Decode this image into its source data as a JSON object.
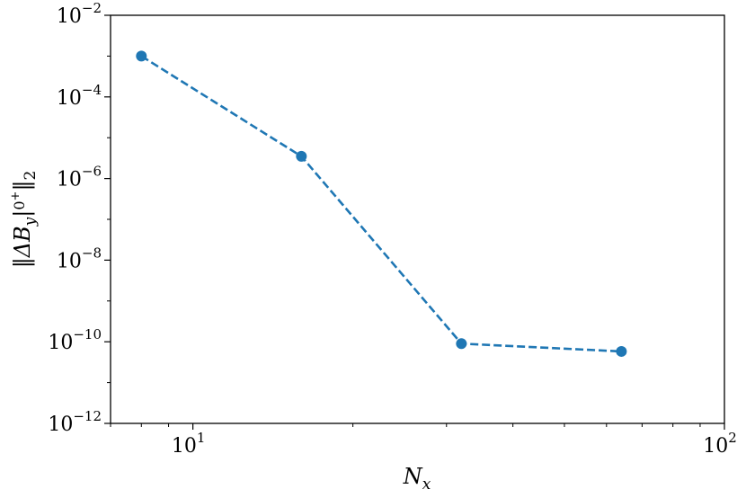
{
  "chart_data": {
    "type": "line",
    "xscale": "log",
    "yscale": "log",
    "xlim": [
      7.0,
      100
    ],
    "ylim": [
      1e-12,
      0.01
    ],
    "xlabel": "N_x",
    "ylabel": "||ΔB_y|0+||_2",
    "grid": false,
    "x_ticks": [
      {
        "value": 10,
        "base": "10",
        "exp": "1"
      },
      {
        "value": 100,
        "base": "10",
        "exp": "2"
      }
    ],
    "y_ticks": [
      {
        "value": 0.01,
        "base": "10",
        "exp": "−2"
      },
      {
        "value": 0.0001,
        "base": "10",
        "exp": "−4"
      },
      {
        "value": 1e-06,
        "base": "10",
        "exp": "−6"
      },
      {
        "value": 1e-08,
        "base": "10",
        "exp": "−8"
      },
      {
        "value": 1e-10,
        "base": "10",
        "exp": "−10"
      },
      {
        "value": 1e-12,
        "base": "10",
        "exp": "−12"
      }
    ],
    "series": [
      {
        "color": "#1f77b4",
        "linestyle": "dashed",
        "marker": "circle",
        "x": [
          8,
          16,
          32,
          64
        ],
        "y": [
          0.001,
          3.5e-06,
          9e-11,
          5.8e-11
        ]
      }
    ]
  }
}
